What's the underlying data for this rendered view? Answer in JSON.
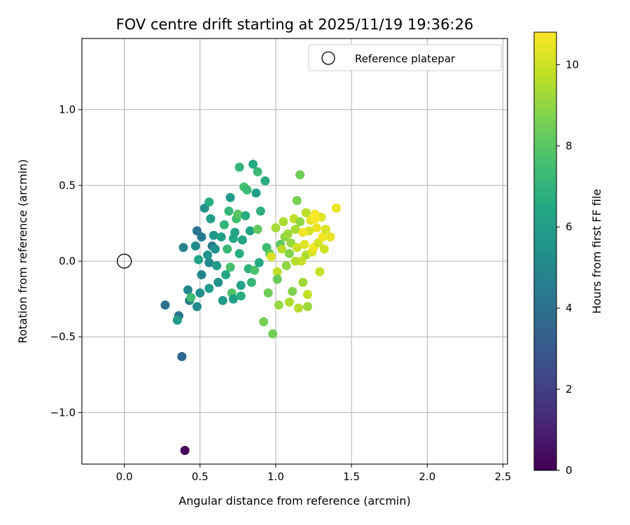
{
  "chart_data": {
    "type": "scatter",
    "title": "FOV centre drift starting at 2025/11/19 19:36:26",
    "xlabel": "Angular distance from reference (arcmin)",
    "ylabel": "Rotation from reference (arcmin)",
    "xlim": [
      -0.28,
      2.53
    ],
    "ylim": [
      -1.34,
      1.47
    ],
    "xticks": [
      0.0,
      0.5,
      1.0,
      1.5,
      2.0,
      2.5
    ],
    "xtick_labels": [
      "0.0",
      "0.5",
      "1.0",
      "1.5",
      "2.0",
      "2.5"
    ],
    "yticks": [
      -1.0,
      -0.5,
      0.0,
      0.5,
      1.0
    ],
    "ytick_labels": [
      "−1.0",
      "−0.5",
      "0.0",
      "0.5",
      "1.0"
    ],
    "grid": true,
    "legend": {
      "label": "Reference platepar",
      "placement": "top-right"
    },
    "reference_point": {
      "x": 0.0,
      "y": 0.0
    },
    "colorbar": {
      "label": "Hours from first FF file",
      "colormap": "viridis",
      "range": [
        0,
        10.8
      ],
      "ticks": [
        0,
        2,
        4,
        6,
        8,
        10
      ],
      "tick_labels": [
        "0",
        "2",
        "4",
        "6",
        "8",
        "10"
      ]
    },
    "points": [
      {
        "x": 0.4,
        "y": -1.25,
        "h": 0.1
      },
      {
        "x": 0.38,
        "y": -0.63,
        "h": 3.6
      },
      {
        "x": 0.27,
        "y": -0.29,
        "h": 4.0
      },
      {
        "x": 0.36,
        "y": -0.36,
        "h": 4.2
      },
      {
        "x": 0.35,
        "y": -0.39,
        "h": 5.9
      },
      {
        "x": 0.39,
        "y": 0.09,
        "h": 4.8
      },
      {
        "x": 0.48,
        "y": 0.2,
        "h": 4.1
      },
      {
        "x": 0.51,
        "y": 0.16,
        "h": 4.5
      },
      {
        "x": 0.47,
        "y": 0.1,
        "h": 5.2
      },
      {
        "x": 0.42,
        "y": -0.19,
        "h": 5.0
      },
      {
        "x": 0.43,
        "y": -0.26,
        "h": 4.7
      },
      {
        "x": 0.44,
        "y": -0.24,
        "h": 7.4
      },
      {
        "x": 0.48,
        "y": -0.3,
        "h": 5.1
      },
      {
        "x": 0.5,
        "y": -0.21,
        "h": 5.3
      },
      {
        "x": 0.49,
        "y": 0.01,
        "h": 6.2
      },
      {
        "x": 0.51,
        "y": -0.09,
        "h": 4.9
      },
      {
        "x": 0.53,
        "y": 0.35,
        "h": 5.3
      },
      {
        "x": 0.56,
        "y": 0.39,
        "h": 6.7
      },
      {
        "x": 0.57,
        "y": 0.28,
        "h": 6.0
      },
      {
        "x": 0.55,
        "y": 0.04,
        "h": 5.6
      },
      {
        "x": 0.56,
        "y": -0.01,
        "h": 5.0
      },
      {
        "x": 0.56,
        "y": -0.18,
        "h": 6.0
      },
      {
        "x": 0.58,
        "y": 0.1,
        "h": 4.6
      },
      {
        "x": 0.59,
        "y": 0.17,
        "h": 5.7
      },
      {
        "x": 0.6,
        "y": 0.08,
        "h": 5.4
      },
      {
        "x": 0.61,
        "y": -0.03,
        "h": 5.8
      },
      {
        "x": 0.62,
        "y": -0.14,
        "h": 5.5
      },
      {
        "x": 0.64,
        "y": 0.16,
        "h": 6.1
      },
      {
        "x": 0.65,
        "y": -0.26,
        "h": 5.9
      },
      {
        "x": 0.66,
        "y": 0.24,
        "h": 7.0
      },
      {
        "x": 0.67,
        "y": -0.09,
        "h": 6.4
      },
      {
        "x": 0.68,
        "y": 0.08,
        "h": 7.2
      },
      {
        "x": 0.69,
        "y": 0.33,
        "h": 7.1
      },
      {
        "x": 0.7,
        "y": 0.42,
        "h": 5.8
      },
      {
        "x": 0.7,
        "y": -0.04,
        "h": 7.6
      },
      {
        "x": 0.71,
        "y": -0.21,
        "h": 7.8
      },
      {
        "x": 0.72,
        "y": -0.25,
        "h": 6.1
      },
      {
        "x": 0.72,
        "y": 0.15,
        "h": 6.5
      },
      {
        "x": 0.73,
        "y": 0.19,
        "h": 6.3
      },
      {
        "x": 0.74,
        "y": 0.28,
        "h": 7.5
      },
      {
        "x": 0.75,
        "y": 0.31,
        "h": 8.0
      },
      {
        "x": 0.76,
        "y": 0.62,
        "h": 7.0
      },
      {
        "x": 0.76,
        "y": 0.05,
        "h": 6.6
      },
      {
        "x": 0.77,
        "y": -0.16,
        "h": 6.2
      },
      {
        "x": 0.77,
        "y": -0.23,
        "h": 6.8
      },
      {
        "x": 0.78,
        "y": 0.14,
        "h": 6.4
      },
      {
        "x": 0.79,
        "y": 0.49,
        "h": 7.6
      },
      {
        "x": 0.8,
        "y": 0.3,
        "h": 6.7
      },
      {
        "x": 0.81,
        "y": 0.47,
        "h": 7.3
      },
      {
        "x": 0.82,
        "y": -0.05,
        "h": 6.9
      },
      {
        "x": 0.83,
        "y": 0.2,
        "h": 6.2
      },
      {
        "x": 0.84,
        "y": -0.14,
        "h": 7.1
      },
      {
        "x": 0.85,
        "y": 0.64,
        "h": 6.6
      },
      {
        "x": 0.86,
        "y": -0.06,
        "h": 7.7
      },
      {
        "x": 0.87,
        "y": 0.45,
        "h": 6.0
      },
      {
        "x": 0.88,
        "y": 0.59,
        "h": 7.2
      },
      {
        "x": 0.88,
        "y": 0.21,
        "h": 8.1
      },
      {
        "x": 0.89,
        "y": -0.01,
        "h": 6.5
      },
      {
        "x": 0.9,
        "y": 0.33,
        "h": 6.9
      },
      {
        "x": 0.92,
        "y": -0.4,
        "h": 8.6
      },
      {
        "x": 0.93,
        "y": 0.53,
        "h": 6.7
      },
      {
        "x": 0.94,
        "y": 0.09,
        "h": 7.4
      },
      {
        "x": 0.95,
        "y": -0.21,
        "h": 8.4
      },
      {
        "x": 0.96,
        "y": 0.05,
        "h": 8.2
      },
      {
        "x": 0.97,
        "y": 0.03,
        "h": 10.2
      },
      {
        "x": 0.98,
        "y": -0.48,
        "h": 8.5
      },
      {
        "x": 1.0,
        "y": 0.22,
        "h": 9.3
      },
      {
        "x": 1.01,
        "y": -0.07,
        "h": 9.7
      },
      {
        "x": 1.01,
        "y": -0.12,
        "h": 8.3
      },
      {
        "x": 1.02,
        "y": -0.29,
        "h": 9.1
      },
      {
        "x": 1.03,
        "y": 0.11,
        "h": 8.0
      },
      {
        "x": 1.04,
        "y": 0.08,
        "h": 9.6
      },
      {
        "x": 1.05,
        "y": 0.26,
        "h": 9.4
      },
      {
        "x": 1.06,
        "y": 0.16,
        "h": 8.9
      },
      {
        "x": 1.07,
        "y": -0.03,
        "h": 9.0
      },
      {
        "x": 1.08,
        "y": 0.18,
        "h": 9.2
      },
      {
        "x": 1.09,
        "y": 0.05,
        "h": 8.8
      },
      {
        "x": 1.09,
        "y": -0.27,
        "h": 9.5
      },
      {
        "x": 1.1,
        "y": 0.12,
        "h": 9.1
      },
      {
        "x": 1.11,
        "y": -0.2,
        "h": 8.7
      },
      {
        "x": 1.12,
        "y": 0.28,
        "h": 9.8
      },
      {
        "x": 1.13,
        "y": 0.21,
        "h": 9.4
      },
      {
        "x": 1.14,
        "y": 0.4,
        "h": 8.6
      },
      {
        "x": 1.14,
        "y": 0.09,
        "h": 10.0
      },
      {
        "x": 1.15,
        "y": -0.31,
        "h": 9.6
      },
      {
        "x": 1.16,
        "y": 0.57,
        "h": 8.4
      },
      {
        "x": 1.16,
        "y": 0.26,
        "h": 9.0
      },
      {
        "x": 1.17,
        "y": 0.0,
        "h": 9.9
      },
      {
        "x": 1.18,
        "y": -0.14,
        "h": 9.3
      },
      {
        "x": 1.19,
        "y": 0.11,
        "h": 10.3
      },
      {
        "x": 1.2,
        "y": 0.32,
        "h": 9.7
      },
      {
        "x": 1.2,
        "y": 0.04,
        "h": 9.5
      },
      {
        "x": 1.21,
        "y": -0.22,
        "h": 9.8
      },
      {
        "x": 1.22,
        "y": 0.2,
        "h": 10.1
      },
      {
        "x": 1.23,
        "y": 0.27,
        "h": 10.4
      },
      {
        "x": 1.24,
        "y": 0.06,
        "h": 10.2
      },
      {
        "x": 1.25,
        "y": 0.09,
        "h": 10.6
      },
      {
        "x": 1.26,
        "y": 0.31,
        "h": 10.7
      },
      {
        "x": 1.27,
        "y": 0.22,
        "h": 10.5
      },
      {
        "x": 1.28,
        "y": 0.12,
        "h": 10.1
      },
      {
        "x": 1.29,
        "y": -0.07,
        "h": 9.9
      },
      {
        "x": 1.3,
        "y": 0.29,
        "h": 10.3
      },
      {
        "x": 1.31,
        "y": 0.16,
        "h": 10.6
      },
      {
        "x": 1.32,
        "y": 0.08,
        "h": 10.0
      },
      {
        "x": 1.33,
        "y": 0.21,
        "h": 10.2
      },
      {
        "x": 1.36,
        "y": 0.16,
        "h": 10.4
      },
      {
        "x": 1.4,
        "y": 0.35,
        "h": 10.5
      },
      {
        "x": 1.21,
        "y": -0.3,
        "h": 9.2
      },
      {
        "x": 1.13,
        "y": 0.0,
        "h": 9.6
      },
      {
        "x": 1.18,
        "y": 0.19,
        "h": 10.6
      },
      {
        "x": 1.26,
        "y": 0.28,
        "h": 10.8
      }
    ]
  }
}
